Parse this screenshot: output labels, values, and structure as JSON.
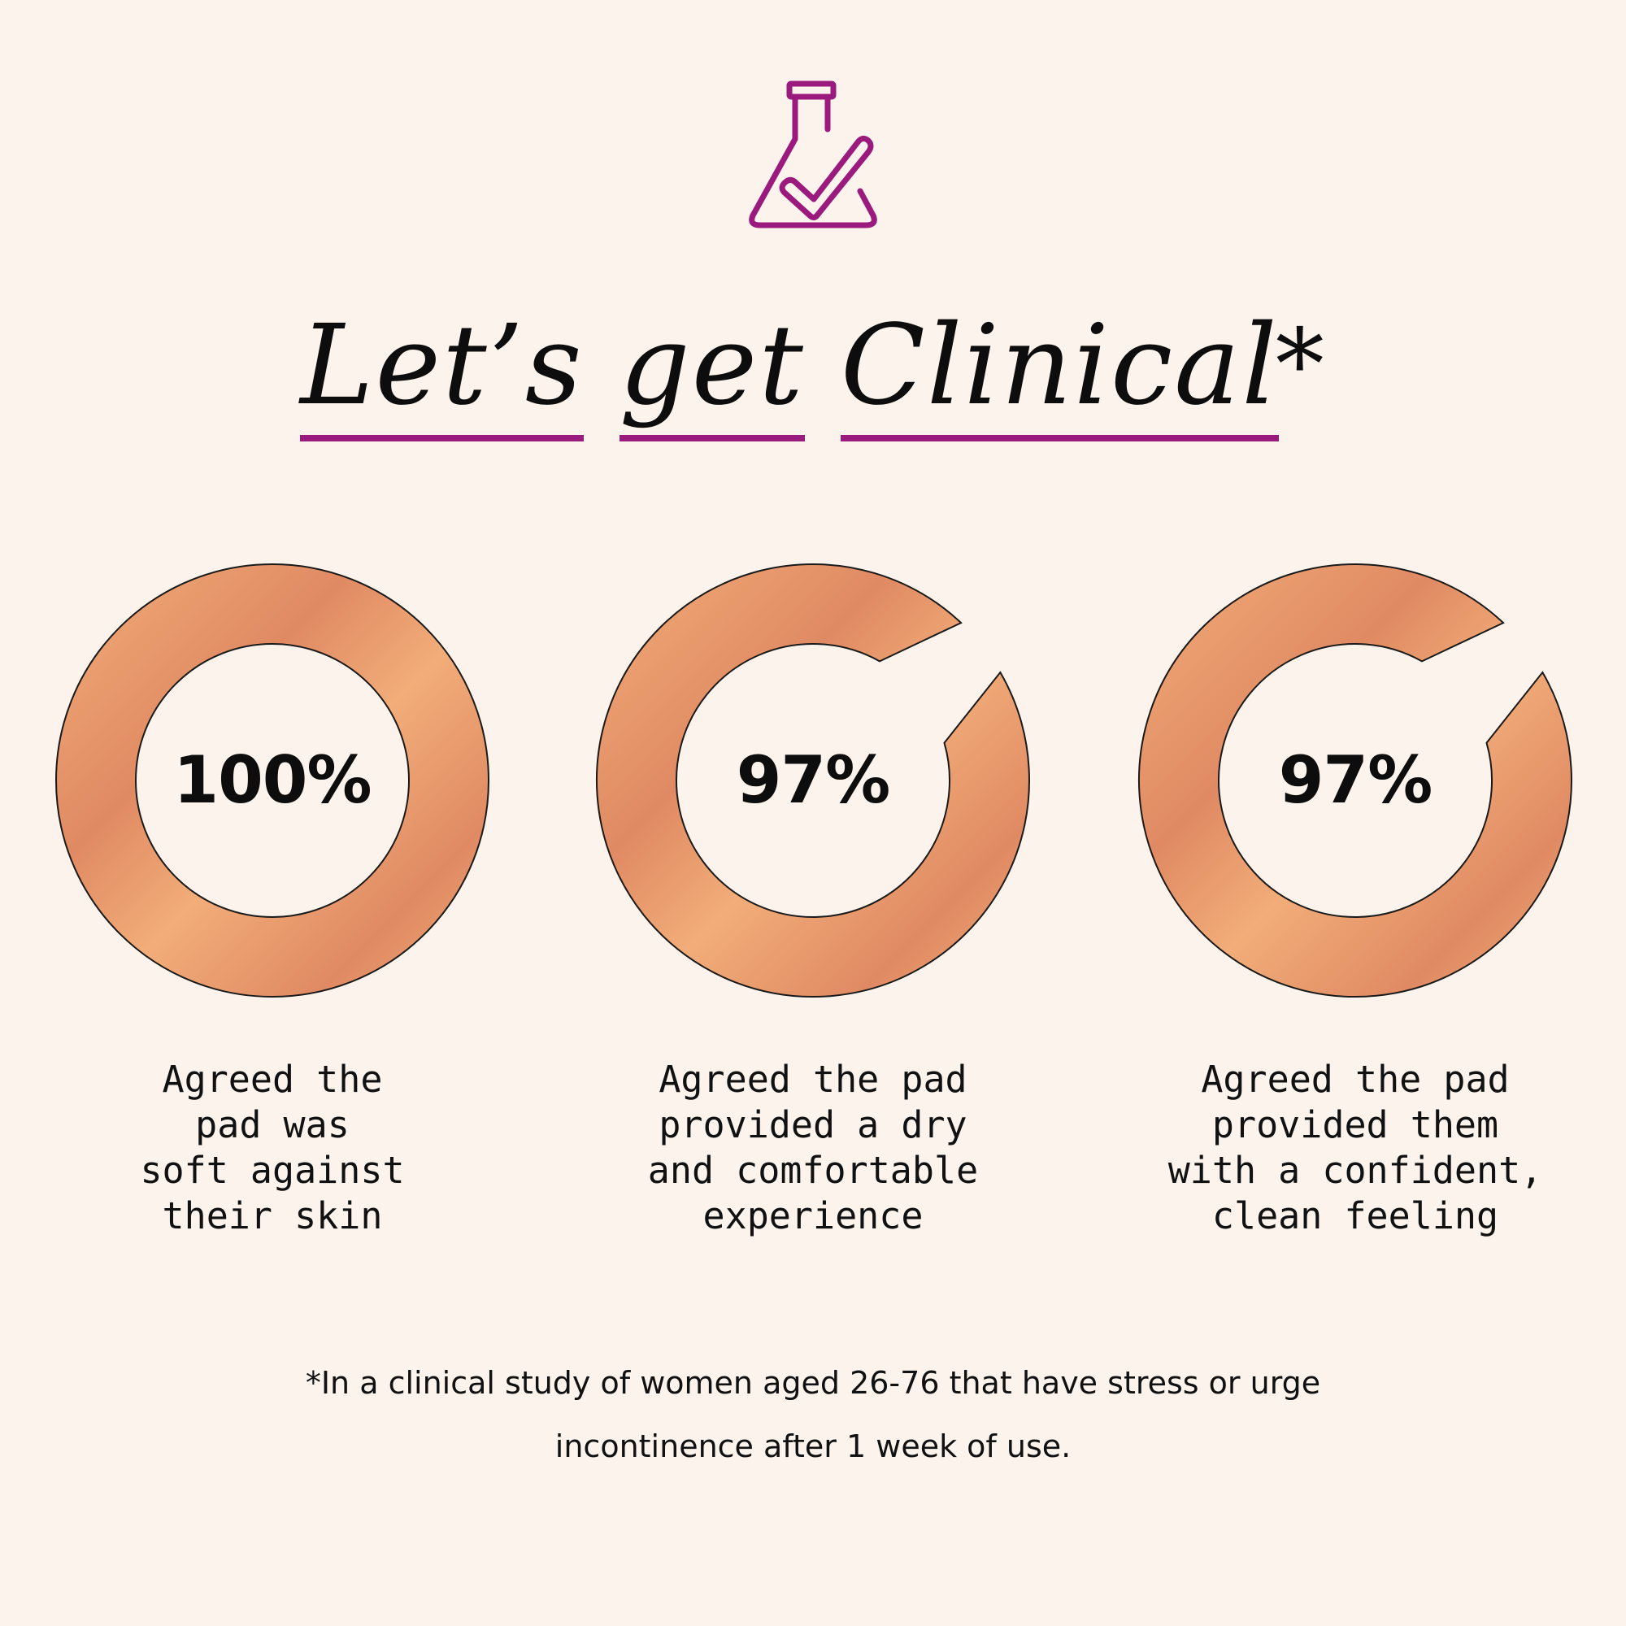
{
  "header": {
    "icon": "flask-check-icon",
    "icon_color": "#9b1a7e",
    "title_words": [
      "Let’s",
      "get",
      "Clinical"
    ],
    "title_asterisk": "*",
    "underline_color": "#9b1a7e"
  },
  "chart_data": {
    "type": "donut",
    "unit": "%",
    "max": 100,
    "colors": {
      "fill_light": "#f2ad79",
      "fill_dark": "#e08a63",
      "outline": "#1a1a1a",
      "background": "#fcf4ec"
    },
    "items": [
      {
        "value": 100,
        "label": "100%",
        "caption": "Agreed the\npad was\nsoft against\ntheir skin"
      },
      {
        "value": 97,
        "label": "97%",
        "caption": "Agreed the pad\nprovided a dry\nand comfortable\nexperience"
      },
      {
        "value": 97,
        "label": "97%",
        "caption": "Agreed the pad\nprovided them\nwith a confident,\nclean feeling"
      }
    ]
  },
  "footnote": "*In a clinical study of women aged 26-76 that have stress or urge incontinence after 1 week of use."
}
